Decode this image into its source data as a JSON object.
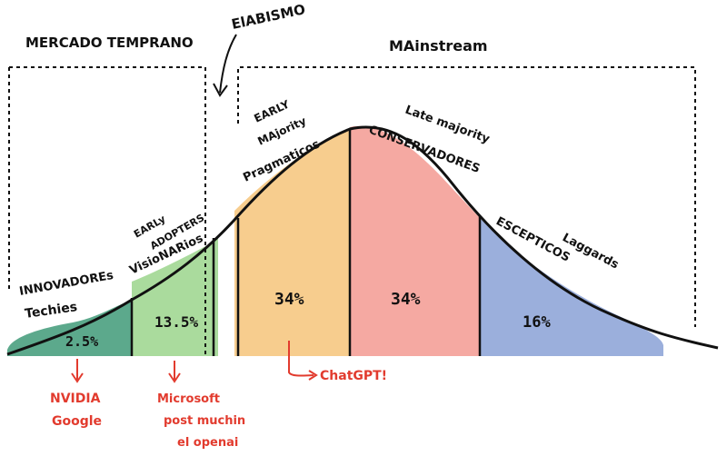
{
  "colors": {
    "innovators": "#3f9a78",
    "early_adopters": "#9bd58c",
    "early_majority": "#f6c47a",
    "late_majority": "#f39a92",
    "laggards": "#8aa1d6",
    "ink": "#111111",
    "annotation": "#e23b2e"
  },
  "labels": {
    "mercado_temprano": "MERCADO TEMPRANO",
    "abismo": "ElABISMO",
    "mainstream": "MAinstream",
    "innovators_1": "INNOVADOREs",
    "innovators_2": "Techies",
    "early_adopters_1": "EARLy",
    "early_adopters_2": "ADOPTERS",
    "early_adopters_3": "VisioNARios",
    "early_majority_1": "EARLY",
    "early_majority_2": "MAjority",
    "early_majority_3": "Pragmaticos",
    "late_majority_1": "Late majority",
    "late_majority_2": "CONSERVADORES",
    "laggards_1": "ESCEPTICOS",
    "laggards_2": "Laggards"
  },
  "percentages": {
    "innovators": "2.5%",
    "early_adopters": "13.5%",
    "early_majority": "34%",
    "late_majority": "34%",
    "laggards": "16%"
  },
  "annotations": {
    "innovators_1": "NVIDIA",
    "innovators_2": "Google",
    "early_adopters_1": "Microsoft",
    "early_adopters_2": "post muchin",
    "early_adopters_3": "el openai",
    "early_majority": "ChatGPT!"
  }
}
